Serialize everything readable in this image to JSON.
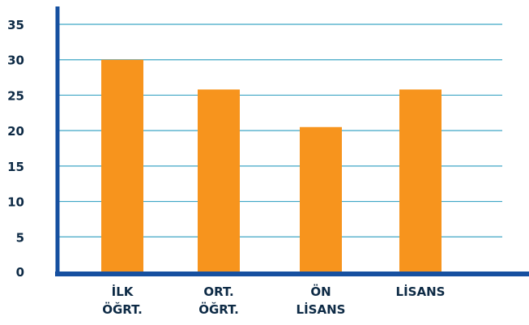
{
  "chart_data": {
    "type": "bar",
    "title": "",
    "xlabel": "",
    "ylabel": "",
    "categories": [
      [
        "İLK",
        "ÖĞRT."
      ],
      [
        "ORT.",
        "ÖĞRT."
      ],
      [
        "ÖN",
        "LİSANS"
      ],
      [
        "LİSANS"
      ]
    ],
    "values": [
      30,
      25.8,
      20.5,
      25.8
    ],
    "ylim": [
      0,
      35
    ],
    "yticks": [
      "0",
      "5",
      "10",
      "15",
      "20",
      "25",
      "30",
      "35"
    ],
    "grid": true,
    "legend": "none",
    "colors": {
      "bar": "#f7941d",
      "grid": "#3fa6c5",
      "axis": "#1650a0",
      "text": "#0d2a45"
    }
  }
}
